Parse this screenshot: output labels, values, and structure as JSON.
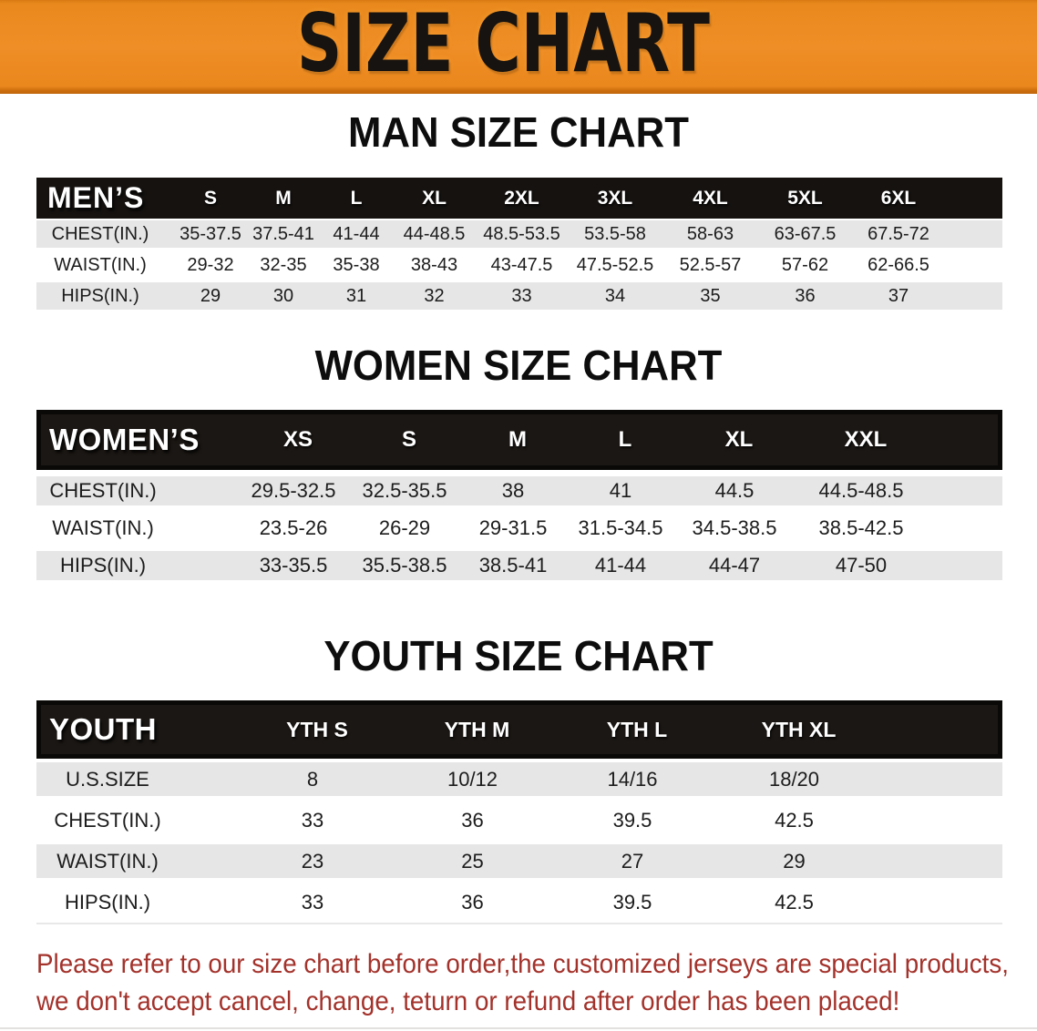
{
  "banner": {
    "title": "SIZE CHART",
    "bg_color": "#EB8A1E",
    "text_color": "#171310"
  },
  "sections": {
    "men": {
      "heading": "MAN SIZE CHART",
      "header_label": "MEN’S",
      "columns": [
        "S",
        "M",
        "L",
        "XL",
        "2XL",
        "3XL",
        "4XL",
        "5XL",
        "6XL"
      ],
      "rows": [
        {
          "label": "CHEST(IN.)",
          "values": [
            "35-37.5",
            "37.5-41",
            "41-44",
            "44-48.5",
            "48.5-53.5",
            "53.5-58",
            "58-63",
            "63-67.5",
            "67.5-72"
          ]
        },
        {
          "label": "WAIST(IN.)",
          "values": [
            "29-32",
            "32-35",
            "35-38",
            "38-43",
            "43-47.5",
            "47.5-52.5",
            "52.5-57",
            "57-62",
            "62-66.5"
          ]
        },
        {
          "label": "HIPS(IN.)",
          "values": [
            "29",
            "30",
            "31",
            "32",
            "33",
            "34",
            "35",
            "36",
            "37"
          ]
        }
      ]
    },
    "women": {
      "heading": "WOMEN SIZE CHART",
      "header_label": "WOMEN’S",
      "columns": [
        "XS",
        "S",
        "M",
        "L",
        "XL",
        "XXL"
      ],
      "rows": [
        {
          "label": "CHEST(IN.)",
          "values": [
            "29.5-32.5",
            "32.5-35.5",
            "38",
            "41",
            "44.5",
            "44.5-48.5"
          ]
        },
        {
          "label": "WAIST(IN.)",
          "values": [
            "23.5-26",
            "26-29",
            "29-31.5",
            "31.5-34.5",
            "34.5-38.5",
            "38.5-42.5"
          ]
        },
        {
          "label": "HIPS(IN.)",
          "values": [
            "33-35.5",
            "35.5-38.5",
            "38.5-41",
            "41-44",
            "44-47",
            "47-50"
          ]
        }
      ]
    },
    "youth": {
      "heading": "YOUTH SIZE CHART",
      "header_label": "YOUTH",
      "columns": [
        "YTH S",
        "YTH M",
        "YTH L",
        "YTH XL"
      ],
      "rows": [
        {
          "label": "U.S.SIZE",
          "values": [
            "8",
            "10/12",
            "14/16",
            "18/20"
          ]
        },
        {
          "label": "CHEST(IN.)",
          "values": [
            "33",
            "36",
            "39.5",
            "42.5"
          ]
        },
        {
          "label": "WAIST(IN.)",
          "values": [
            "23",
            "25",
            "27",
            "29"
          ]
        },
        {
          "label": "HIPS(IN.)",
          "values": [
            "33",
            "36",
            "39.5",
            "42.5"
          ]
        }
      ]
    }
  },
  "table_colors": {
    "header_bg": "#151210",
    "header_text": "#FFFFFF",
    "row_stripe": "#E6E6E6",
    "row_text": "#1C1C1C"
  },
  "footer": {
    "line1": "Please refer to our size chart before order,the customized jerseys are special products,",
    "line2": "we don't accept cancel, change, teturn or refund after order has been placed!",
    "text_color": "#A3322B"
  }
}
